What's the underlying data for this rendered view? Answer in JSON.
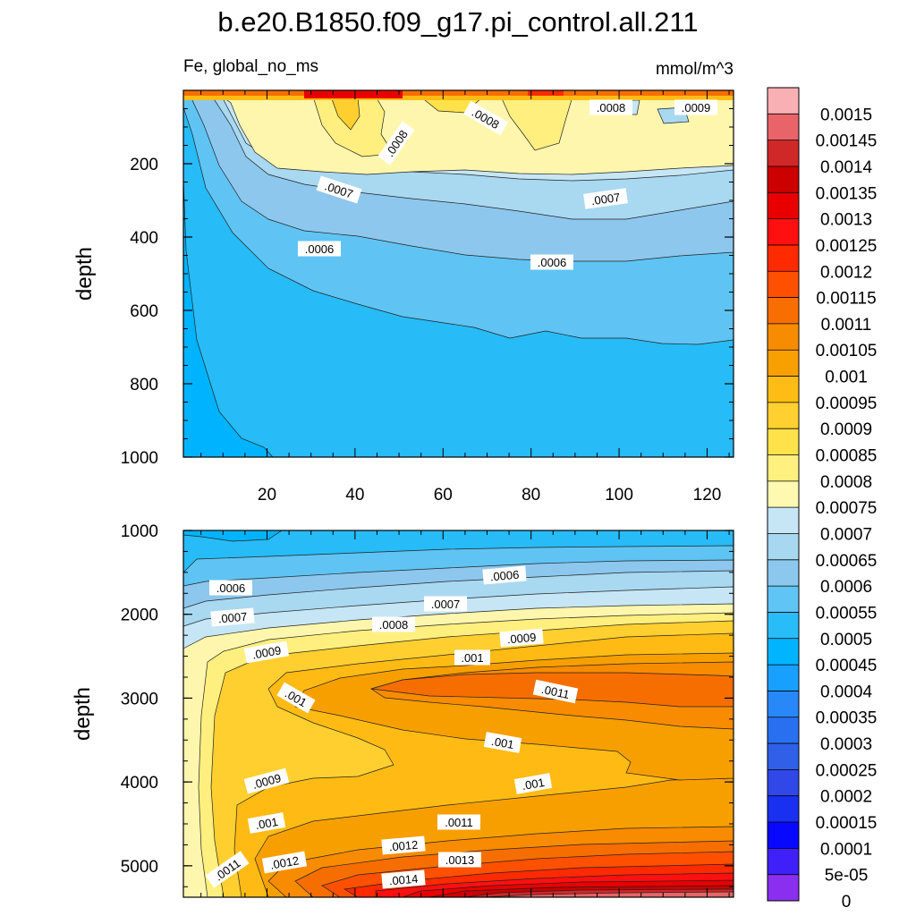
{
  "chart_data": {
    "type": "contour",
    "title": "b.e20.B1850.f09_g17.pi_control.all.211",
    "variable_label": "Fe, global_no_ms",
    "units": "mmol/m^3",
    "colorbar": {
      "levels": [
        "0.0015",
        "0.00145",
        "0.0014",
        "0.00135",
        "0.0013",
        "0.00125",
        "0.0012",
        "0.00115",
        "0.0011",
        "0.00105",
        "0.001",
        "0.00095",
        "0.0009",
        "0.00085",
        "0.0008",
        "0.00075",
        "0.0007",
        "0.00065",
        "0.0006",
        "0.00055",
        "0.0005",
        "0.00045",
        "0.0004",
        "0.00035",
        "0.0003",
        "0.00025",
        "0.0002",
        "0.00015",
        "0.0001",
        "5e-05",
        "0"
      ],
      "colors": [
        "#f8b0b4",
        "#e86468",
        "#d02828",
        "#cc0000",
        "#e80000",
        "#ff1010",
        "#ff2a00",
        "#ff5000",
        "#f86e00",
        "#f88c00",
        "#f8a000",
        "#ffbc14",
        "#ffd030",
        "#ffe24a",
        "#fff080",
        "#fff8b0",
        "#c6e6f6",
        "#a8d8f0",
        "#8cc8ee",
        "#60c4f4",
        "#28bcf8",
        "#00b4ff",
        "#18a0ff",
        "#2888f8",
        "#2870f0",
        "#3060e8",
        "#3048e8",
        "#1a30f0",
        "#0808ff",
        "#4020f8",
        "#8a2ff0"
      ]
    },
    "panels": [
      {
        "name": "upper",
        "ylabel": "depth",
        "ylim": [
          1000,
          0
        ],
        "xlim": [
          1,
          126
        ],
        "yticks": [
          "200",
          "400",
          "600",
          "800",
          "1000"
        ],
        "xticks": [
          "20",
          "40",
          "60",
          "80",
          "100",
          "120"
        ],
        "contour_labels": [
          ".0008",
          ".0008",
          ".0008",
          ".0009",
          ".0007",
          ".0007",
          ".0006",
          ".0006"
        ]
      },
      {
        "name": "lower",
        "ylabel": "depth",
        "ylim": [
          5375,
          1000
        ],
        "xlim": [
          1,
          126
        ],
        "yticks": [
          "1000",
          "2000",
          "3000",
          "4000",
          "5000"
        ],
        "contour_labels": [
          ".0006",
          ".0006",
          ".0007",
          ".0007",
          ".0008",
          ".0009",
          ".0009",
          ".001",
          ".001",
          ".0011",
          ".001",
          ".001",
          ".0009",
          ".001",
          ".0011",
          ".0011",
          ".0012",
          ".0012",
          ".0013",
          ".0014"
        ]
      }
    ]
  }
}
